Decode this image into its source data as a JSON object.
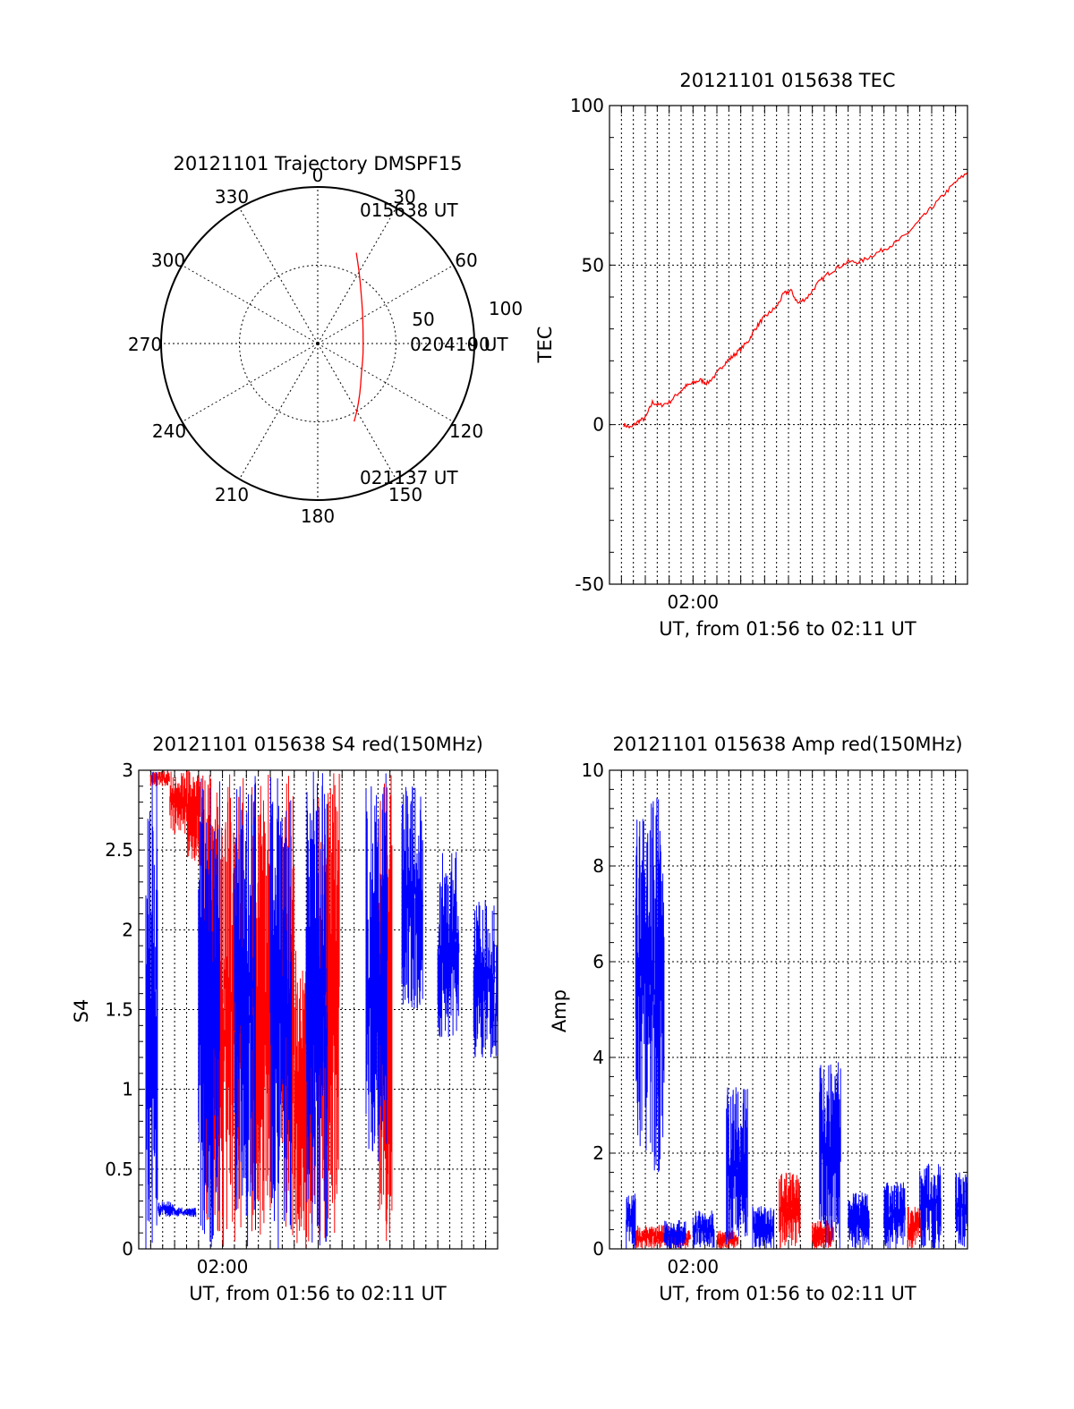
{
  "chart_data": [
    {
      "type": "polar",
      "title": "20121101 Trajectory DMSPF15",
      "azimuth_labels": [
        "0",
        "30",
        "60",
        "90",
        "120",
        "150",
        "180",
        "210",
        "240",
        "270",
        "300",
        "330"
      ],
      "radial_labels": [
        "50",
        "100"
      ],
      "rlim": [
        0,
        100
      ],
      "track": {
        "start_label": "015638 UT",
        "mid_label": "020410 UT",
        "end_label": "021137 UT",
        "points": [
          [
            23,
            63
          ],
          [
            30,
            53
          ],
          [
            40,
            43
          ],
          [
            55,
            35
          ],
          [
            75,
            30
          ],
          [
            90,
            29
          ],
          [
            105,
            30
          ],
          [
            125,
            34
          ],
          [
            140,
            42
          ],
          [
            150,
            50
          ],
          [
            155,
            55
          ]
        ]
      },
      "colors": {
        "track": "#ff0000"
      }
    },
    {
      "type": "line",
      "title": "20121101 015638 TEC",
      "xlabel": "UT, from 01:56 to 02:11 UT",
      "ylabel": "TEC",
      "xlim_minutes": [
        116.5,
        131.5
      ],
      "x_tick_labels": [
        {
          "t": 120,
          "label": "02:00"
        }
      ],
      "ylim": [
        -50,
        100
      ],
      "yticks": [
        "-50",
        "0",
        "50",
        "100"
      ],
      "grid": true,
      "series": [
        {
          "color": "#ff0000",
          "t": [
            117.1,
            117.4,
            117.7,
            118.0,
            118.3,
            118.6,
            119.0,
            119.4,
            119.7,
            120.0,
            120.3,
            120.6,
            121.0,
            121.3,
            121.6,
            121.9,
            122.3,
            122.6,
            122.9,
            123.2,
            123.5,
            123.8,
            124.1,
            124.4,
            124.8,
            125.2,
            125.6,
            126.0,
            126.5,
            127.0,
            127.5,
            128.0,
            128.5,
            129.0,
            129.5,
            130.0,
            130.5,
            131.0,
            131.5
          ],
          "values": [
            0,
            -1,
            1,
            2,
            7,
            6,
            7,
            10,
            12,
            13,
            14,
            13,
            16,
            19,
            21,
            23,
            26,
            30,
            33,
            35,
            37,
            41,
            42,
            38,
            40,
            44,
            47,
            49,
            51,
            51,
            53,
            55,
            57,
            60,
            64,
            68,
            72,
            76,
            79
          ]
        }
      ]
    },
    {
      "type": "line",
      "title": "20121101 015638 S4 red(150MHz)",
      "xlabel": "UT, from 01:56 to 02:11 UT",
      "ylabel": "S4",
      "xlim_minutes": [
        116.5,
        131.5
      ],
      "x_tick_labels": [
        {
          "t": 120,
          "label": "02:00"
        }
      ],
      "ylim": [
        0,
        3
      ],
      "yticks": [
        "0",
        "0.5",
        "1",
        "1.5",
        "2",
        "2.5",
        "3"
      ],
      "grid": true,
      "series": [
        {
          "color": "#ff0000",
          "segments": [
            [
              117.0,
              2.9,
              3.0
            ],
            [
              117.8,
              2.6,
              3.0
            ],
            [
              118.5,
              2.4,
              3.0
            ],
            [
              119.2,
              0.0,
              3.0
            ],
            [
              120.0,
              0.0,
              3.0
            ],
            [
              121.2,
              0.0,
              3.0
            ],
            [
              122.5,
              0.0,
              3.0
            ],
            [
              123.0,
              0.0,
              1.9
            ],
            [
              124.0,
              0.0,
              3.0
            ],
            [
              126.5,
              0.0,
              3.0
            ]
          ]
        },
        {
          "color": "#0000ff",
          "segments": [
            [
              116.8,
              0.0,
              3.0
            ],
            [
              117.3,
              0.2,
              0.3
            ],
            [
              118.0,
              0.2,
              0.26
            ],
            [
              119.0,
              0.0,
              3.0
            ],
            [
              120.5,
              0.0,
              3.0
            ],
            [
              122.0,
              0.0,
              3.0
            ],
            [
              123.5,
              0.0,
              3.0
            ],
            [
              126.0,
              0.5,
              3.0
            ],
            [
              127.5,
              1.5,
              2.9
            ],
            [
              129.0,
              1.3,
              2.5
            ],
            [
              130.5,
              1.2,
              2.2
            ],
            [
              131.4,
              1.1,
              1.9
            ]
          ]
        }
      ]
    },
    {
      "type": "line",
      "title": "20121101 015638 Amp red(150MHz)",
      "xlabel": "UT, from 01:56 to 02:11 UT",
      "ylabel": "Amp",
      "xlim_minutes": [
        116.5,
        131.5
      ],
      "x_tick_labels": [
        {
          "t": 120,
          "label": "02:00"
        }
      ],
      "ylim": [
        0,
        10
      ],
      "yticks": [
        "0",
        "2",
        "4",
        "6",
        "8",
        "10"
      ],
      "grid": true,
      "series": [
        {
          "color": "#ff0000",
          "segments": [
            [
              117.6,
              0.0,
              0.5
            ],
            [
              118.4,
              0.0,
              0.5
            ],
            [
              119.0,
              0.0,
              0.4
            ],
            [
              121.0,
              0.0,
              0.4
            ],
            [
              123.6,
              0.0,
              1.6
            ],
            [
              125.0,
              0.0,
              0.6
            ],
            [
              129.0,
              0.0,
              0.9
            ]
          ]
        },
        {
          "color": "#0000ff",
          "segments": [
            [
              117.2,
              0.0,
              1.2
            ],
            [
              117.6,
              2.0,
              9.0
            ],
            [
              118.2,
              1.5,
              9.5
            ],
            [
              118.8,
              0.0,
              0.6
            ],
            [
              120.0,
              0.0,
              0.8
            ],
            [
              121.4,
              0.0,
              3.4
            ],
            [
              122.5,
              0.0,
              0.9
            ],
            [
              125.3,
              0.0,
              3.9
            ],
            [
              126.5,
              0.0,
              1.2
            ],
            [
              128.0,
              0.0,
              1.4
            ],
            [
              129.5,
              0.0,
              1.8
            ],
            [
              131.0,
              0.0,
              1.6
            ]
          ]
        }
      ]
    }
  ]
}
